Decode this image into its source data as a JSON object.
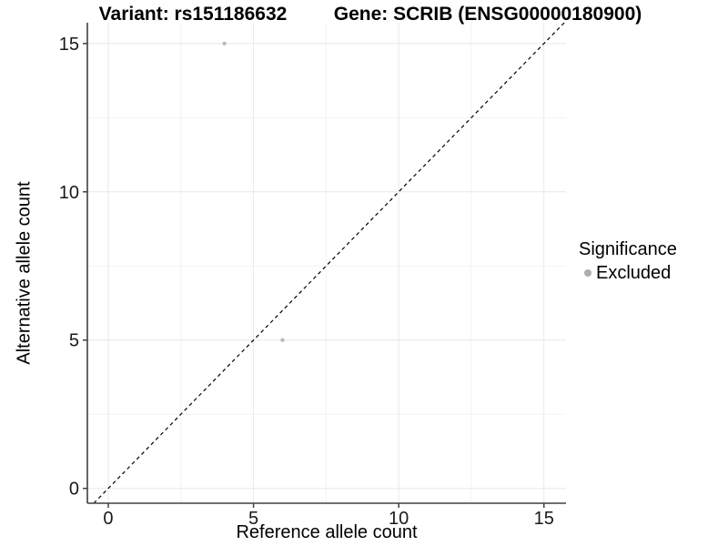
{
  "chart_data": {
    "type": "scatter",
    "title_left": "Variant: rs151186632",
    "title_right": "Gene: SCRIB (ENSG00000180900)",
    "xlabel": "Reference allele count",
    "ylabel": "Alternative allele count",
    "xlim": [
      -0.72,
      15.76
    ],
    "ylim": [
      -0.5,
      15.7
    ],
    "x_major_ticks": [
      0,
      5,
      10,
      15
    ],
    "y_major_ticks": [
      0,
      5,
      10,
      15
    ],
    "x_minor_ticks": [
      2.5,
      7.5,
      12.5
    ],
    "y_minor_ticks": [
      2.5,
      7.5,
      12.5
    ],
    "grid": {
      "major_color": "#e8e8e8",
      "minor_color": "#f3f3f3"
    },
    "axis_color": "#404040",
    "identity_line": {
      "style": "dashed",
      "color": "#000000",
      "from": -0.5,
      "to": 15.7
    },
    "series": [
      {
        "name": "Excluded",
        "color": "#bcbcbc",
        "point_radius": 2.2,
        "points": [
          {
            "x": 4,
            "y": 15
          },
          {
            "x": 6,
            "y": 5
          }
        ]
      }
    ],
    "legend": {
      "title": "Significance",
      "position": "right",
      "items": [
        {
          "label": "Excluded",
          "color": "#aeaeae"
        }
      ]
    }
  }
}
